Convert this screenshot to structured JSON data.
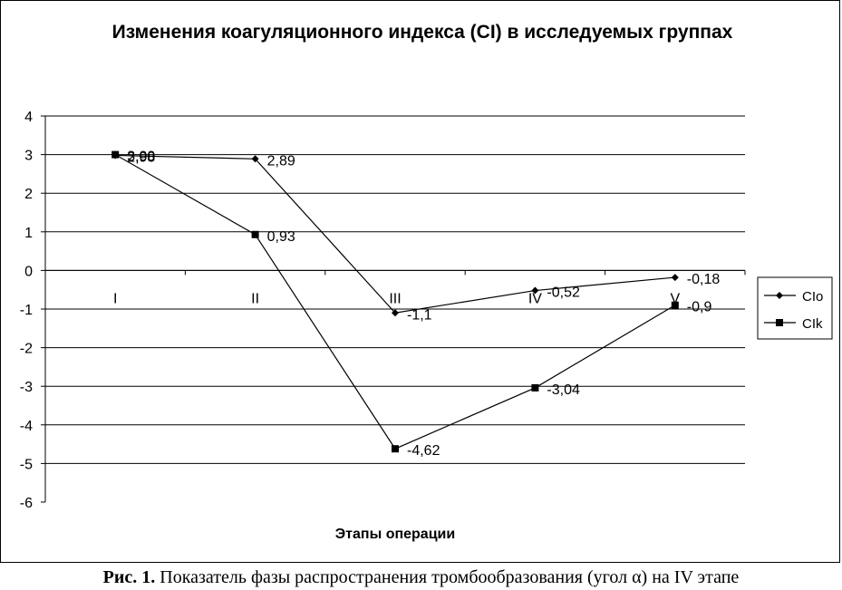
{
  "caption": {
    "fig_label": "Рис. 1.",
    "text": " Показатель фазы распространения тромбообразования (угол α) на IV этапе"
  },
  "chart_data": {
    "type": "line",
    "title": "Изменения коагуляционного индекса (CI) в исследуемых группах",
    "xlabel": "Этапы операции",
    "ylabel": "",
    "categories": [
      "I",
      "II",
      "III",
      "IV",
      "V"
    ],
    "ylim": [
      -6,
      4
    ],
    "yticks": [
      4,
      3,
      2,
      1,
      0,
      -1,
      -2,
      -3,
      -4,
      -5,
      -6
    ],
    "grid": true,
    "legend_position": "right",
    "series": [
      {
        "name": "CIo",
        "marker": "diamond",
        "values": [
          2.98,
          2.89,
          -1.1,
          -0.52,
          -0.18
        ],
        "labels": [
          "2,98",
          "2,89",
          "-1,1",
          "-0,52",
          "-0,18"
        ]
      },
      {
        "name": "CIk",
        "marker": "square",
        "values": [
          3.0,
          0.93,
          -4.62,
          -3.04,
          -0.9
        ],
        "labels": [
          "3,00",
          "0,93",
          "-4,62",
          "-3,04",
          "-0,9"
        ]
      }
    ]
  }
}
